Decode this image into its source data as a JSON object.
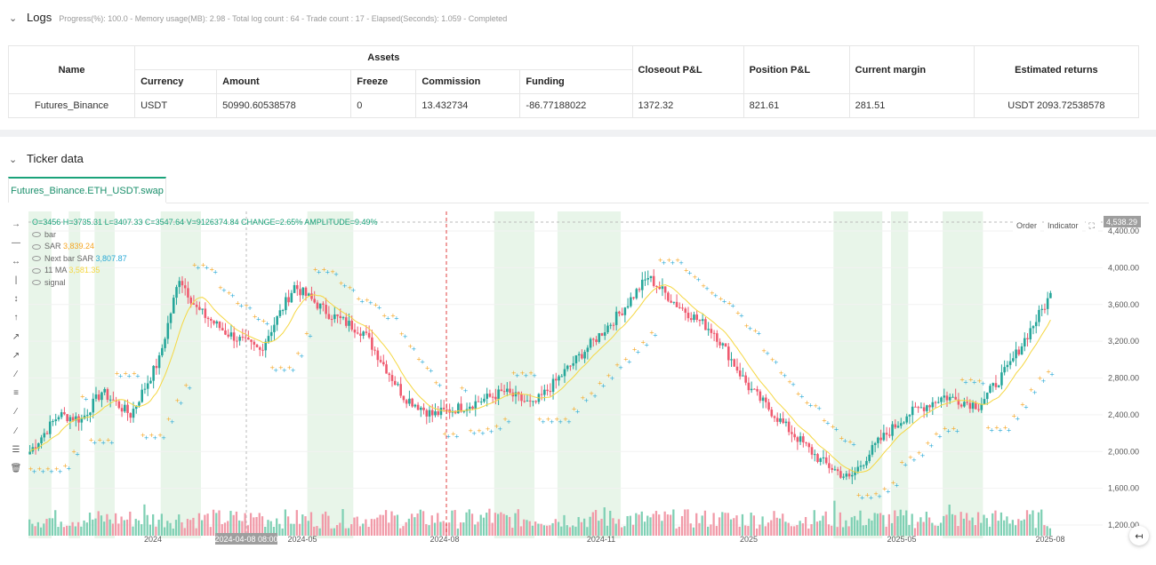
{
  "logs": {
    "title": "Logs",
    "meta": "Progress(%): 100.0 - Memory usage(MB): 2.98 - Total log count : 64 - Trade count : 17 - Elapsed(Seconds): 1.059 - Completed"
  },
  "table": {
    "headers": {
      "name": "Name",
      "assets": "Assets",
      "closeout": "Closeout P&L",
      "position": "Position P&L",
      "margin": "Current margin",
      "returns": "Estimated returns",
      "currency": "Currency",
      "amount": "Amount",
      "freeze": "Freeze",
      "commission": "Commission",
      "funding": "Funding"
    },
    "row": {
      "name": "Futures_Binance",
      "currency": "USDT",
      "amount": "50990.60538578",
      "freeze": "0",
      "commission": "13.432734",
      "funding": "-86.77188022",
      "closeout": "1372.32",
      "position": "821.61",
      "margin": "281.51",
      "returns": "USDT 2093.72538578"
    }
  },
  "ticker": {
    "title": "Ticker data",
    "tab": "Futures_Binance.ETH_USDT.swap",
    "buttons": {
      "order": "Order",
      "indicator": "Indicator"
    },
    "legend": {
      "ohlc": "O=3456 H=3735.31 L=3407.33 C=3547.64 V=9126374.84 CHANGE=2.65% AMPLITUDE=9.49%",
      "bar": "bar",
      "sar": "SAR",
      "sar_value": "3,839.24",
      "next_sar": "Next bar SAR",
      "next_sar_value": "3,807.87",
      "ma": "11 MA",
      "ma_value": "3,581.35",
      "signal": "signal"
    },
    "colors": {
      "up": "#26a69a",
      "down": "#ef5a6f",
      "sar": "#f5a623",
      "next_sar": "#29a9d6",
      "ma": "#f5d742",
      "shade": "#e8f5e9"
    },
    "crosshair_price": "4,538.29",
    "crosshair_date": "2024-04-08 08:00"
  },
  "chart_data": {
    "type": "candlestick",
    "y_ticks": [
      "4,400.00",
      "4,000.00",
      "3,600.00",
      "3,200.00",
      "2,800.00",
      "2,400.00",
      "2,000.00",
      "1,600.00",
      "1,200.00"
    ],
    "y_tick_values": [
      4400,
      4000,
      3600,
      3200,
      2800,
      2400,
      2000,
      1600,
      1200
    ],
    "x_ticks": [
      "2024",
      "2024-05",
      "2024-08",
      "2024-11",
      "2025",
      "2025-05",
      "2025-08"
    ],
    "ylim": [
      1100,
      4500
    ],
    "anchors": [
      [
        0,
        2000
      ],
      [
        10,
        2400
      ],
      [
        18,
        2350
      ],
      [
        25,
        2650
      ],
      [
        35,
        2400
      ],
      [
        45,
        3000
      ],
      [
        52,
        3900
      ],
      [
        58,
        3550
      ],
      [
        68,
        3300
      ],
      [
        80,
        3100
      ],
      [
        92,
        3800
      ],
      [
        104,
        3500
      ],
      [
        116,
        3300
      ],
      [
        130,
        2600
      ],
      [
        140,
        2400
      ],
      [
        152,
        2500
      ],
      [
        165,
        2650
      ],
      [
        175,
        2500
      ],
      [
        190,
        3000
      ],
      [
        205,
        3500
      ],
      [
        215,
        3900
      ],
      [
        225,
        3600
      ],
      [
        238,
        3300
      ],
      [
        250,
        2700
      ],
      [
        262,
        2300
      ],
      [
        275,
        1900
      ],
      [
        285,
        1700
      ],
      [
        295,
        2100
      ],
      [
        305,
        2400
      ],
      [
        318,
        2600
      ],
      [
        330,
        2500
      ],
      [
        340,
        2900
      ],
      [
        355,
        3700
      ]
    ],
    "shaded_ranges": [
      [
        0,
        8
      ],
      [
        14,
        18
      ],
      [
        23,
        30
      ],
      [
        46,
        60
      ],
      [
        97,
        113
      ],
      [
        162,
        176
      ],
      [
        184,
        206
      ],
      [
        280,
        297
      ],
      [
        300,
        306
      ],
      [
        318,
        332
      ]
    ],
    "volume_note": "volume histogram at bottom, colored by candle direction"
  }
}
